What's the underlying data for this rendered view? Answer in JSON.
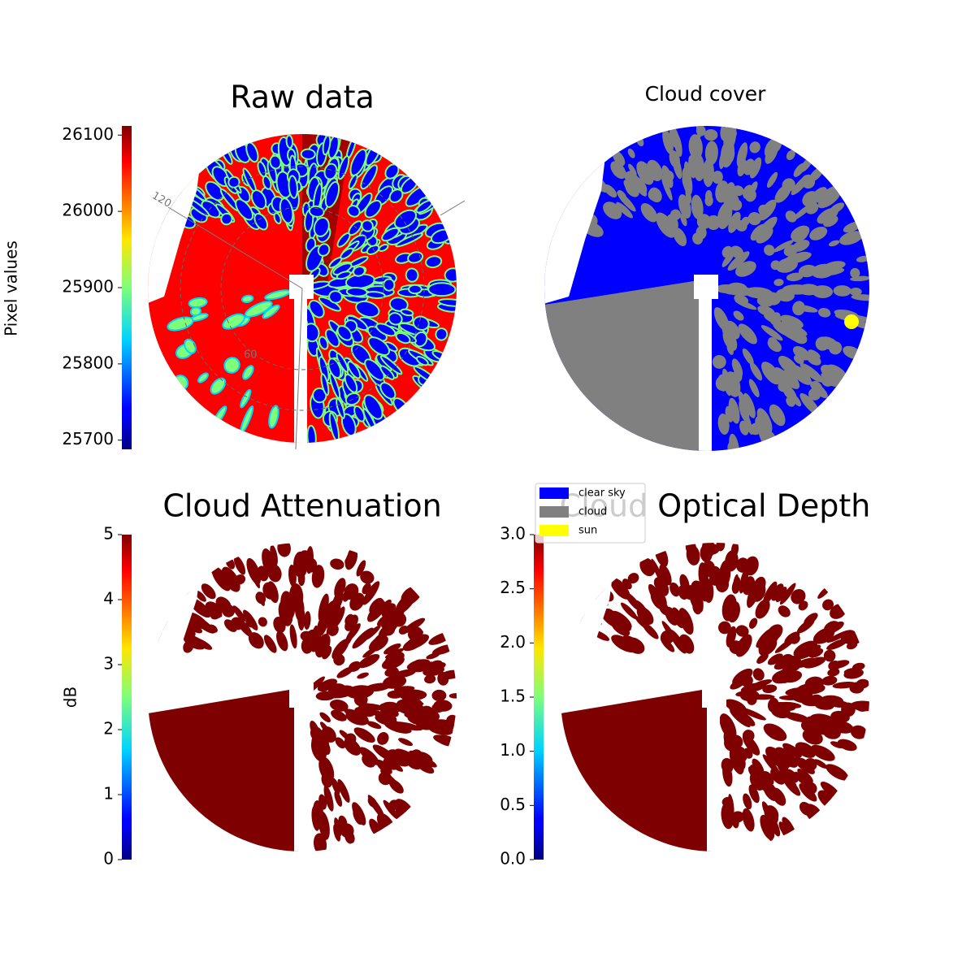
{
  "chart_data": [
    {
      "type": "image",
      "title": "Raw data",
      "colorbar_label": "Pixel values",
      "colormap": "jet",
      "ylim": [
        25688,
        26112
      ],
      "yticks": [
        25700,
        25800,
        25900,
        26000,
        26100
      ],
      "annotations": [
        "120",
        "60"
      ]
    },
    {
      "type": "classification",
      "title": "Cloud cover",
      "series": [
        {
          "name": "clear sky",
          "color": "#0000ff"
        },
        {
          "name": "cloud",
          "color": "#808080"
        },
        {
          "name": "sun",
          "color": "#ffff00"
        }
      ]
    },
    {
      "type": "image",
      "title": "Cloud Attenuation",
      "colorbar_label": "dB",
      "colormap": "jet",
      "ylim": [
        0,
        5
      ],
      "yticks": [
        0,
        1,
        2,
        3,
        4,
        5
      ]
    },
    {
      "type": "image",
      "title": "Cloud Optical Depth",
      "colormap": "jet",
      "ylim": [
        0,
        3
      ],
      "yticks": [
        {
          "value": 0,
          "label": "0.0"
        },
        0.5,
        {
          "value": 1,
          "label": "1.0"
        },
        1.5,
        {
          "value": 2,
          "label": "2.0"
        },
        2.5,
        {
          "value": 3,
          "label": "3.0"
        }
      ]
    }
  ]
}
